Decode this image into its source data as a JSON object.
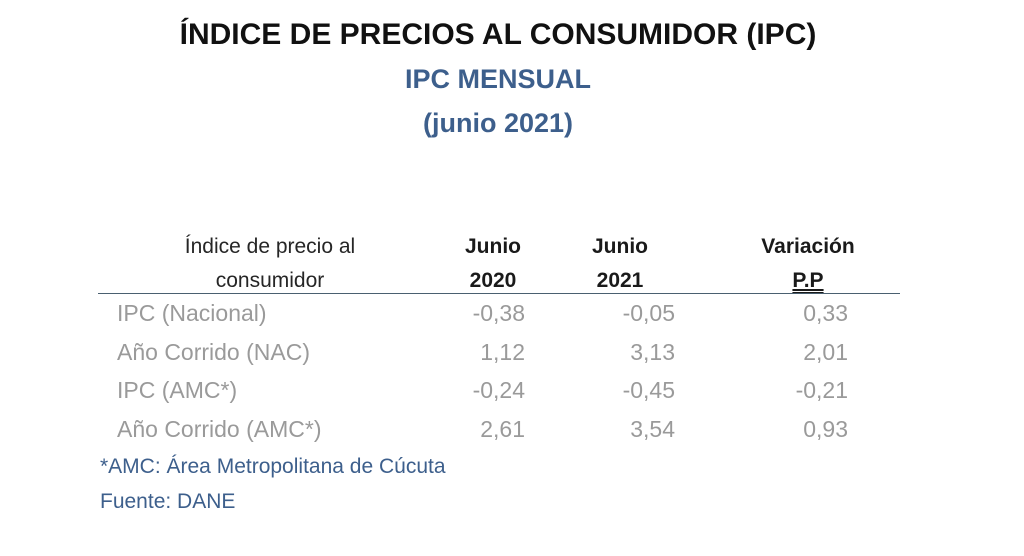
{
  "header": {
    "title": "ÍNDICE DE PRECIOS AL CONSUMIDOR (IPC)",
    "subtitle": "IPC MENSUAL",
    "period": "(junio 2021)"
  },
  "table": {
    "columns": {
      "label_line1": "Índice de precio al",
      "label_line2": "consumidor",
      "col1_line1": "Junio",
      "col1_line2": "2020",
      "col2_line1": "Junio",
      "col2_line2": "2021",
      "col3_line1": "Variación",
      "col3_line2": "P.P"
    },
    "rows": [
      {
        "label": "IPC (Nacional)",
        "v2020": "-0,38",
        "v2021": "-0,05",
        "variation": "0,33"
      },
      {
        "label": "Año Corrido (NAC)",
        "v2020": "1,12",
        "v2021": "3,13",
        "variation": "2,01"
      },
      {
        "label": "IPC (AMC*)",
        "v2020": "-0,24",
        "v2021": "-0,45",
        "variation": "-0,21"
      },
      {
        "label": "Año Corrido (AMC*)",
        "v2020": "2,61",
        "v2021": "3,54",
        "variation": "0,93"
      }
    ]
  },
  "footnotes": {
    "amc": "*AMC: Área Metropolitana de Cúcuta",
    "source": "Fuente: DANE"
  }
}
